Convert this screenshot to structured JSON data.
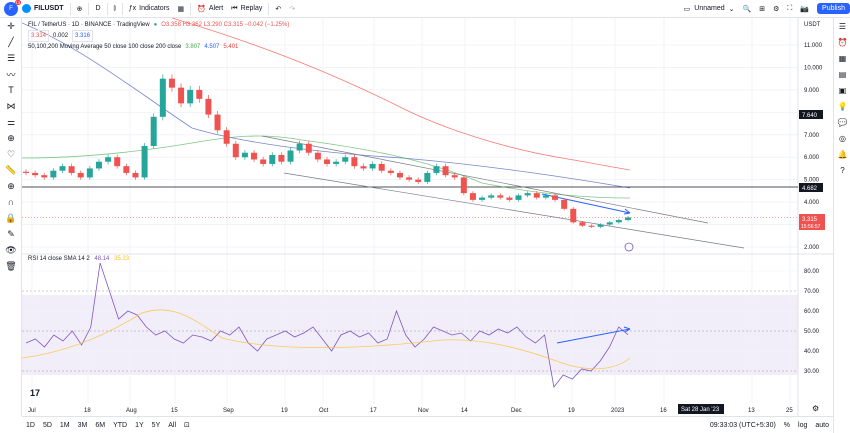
{
  "topbar": {
    "avatar_text": "F",
    "notif_count": "13",
    "symbol": "FILUSDT",
    "interval": "D",
    "indicators_label": "Indicators",
    "alert_label": "Alert",
    "replay_label": "Replay",
    "layout_name": "Unnamed",
    "publish_label": "Publish"
  },
  "legend": {
    "title": "FIL / TetherUS · 1D · BINANCE · TradingView",
    "ohlc": "O3.358 H3.362 L3.290 C3.315 −0.042 (−1.25%)",
    "bid": "3.314",
    "spread": "0.002",
    "ask": "3.316",
    "ma_label": "50,100,200 Moving Average 50 close 100 close 200 close",
    "ma50": "3.807",
    "ma100": "4.507",
    "ma200": "5.401",
    "rsi_label": "RSI 14 close SMA 14 2",
    "rsi_val": "48.14",
    "rsi_sma": "35.33"
  },
  "price_axis": {
    "currency": "USDT",
    "ticks": [
      "11.000",
      "10.000",
      "9.000",
      "8.000",
      "7.000",
      "6.000",
      "5.000",
      "4.000",
      "3.000",
      "2.000"
    ],
    "marker_high": "7.640",
    "marker_line": "4.682",
    "last_price": "3.315",
    "countdown": "15:56:57"
  },
  "rsi_axis": {
    "ticks": [
      "80.00",
      "70.00",
      "60.00",
      "50.00",
      "40.00",
      "30.00"
    ]
  },
  "time_axis": {
    "ticks": [
      "Jul",
      "18",
      "Aug",
      "15",
      "Sep",
      "19",
      "Oct",
      "17",
      "Nov",
      "14",
      "Dec",
      "19",
      "2023",
      "16",
      "13",
      "25"
    ],
    "crosshair_date": "Sat 28 Jan '23"
  },
  "bottombar": {
    "ranges": [
      "1D",
      "5D",
      "1M",
      "3M",
      "6M",
      "YTD",
      "1Y",
      "5Y",
      "All"
    ],
    "time": "09:33:03 (UTC+5:30)",
    "pct": "%",
    "log": "log",
    "auto": "auto"
  },
  "colors": {
    "up": "#26a69a",
    "down": "#ef5350",
    "ma50": "#4caf50",
    "ma100": "#2962ff",
    "ma200": "#f44336",
    "rsi": "#7e57c2",
    "rsi_sma": "#fbc02d",
    "accent": "#2962ff"
  },
  "chart_data": {
    "type": "candlestick",
    "symbol": "FIL / TetherUS",
    "interval": "1D",
    "closes": [
      5.3,
      5.2,
      5.1,
      5.4,
      5.6,
      5.3,
      5.1,
      5.5,
      5.8,
      6.0,
      5.6,
      5.3,
      5.1,
      6.5,
      7.8,
      9.5,
      9.1,
      8.4,
      9.0,
      8.6,
      7.9,
      7.2,
      6.6,
      6.0,
      6.2,
      5.9,
      5.7,
      6.1,
      5.8,
      6.3,
      6.6,
      6.2,
      5.9,
      5.7,
      5.8,
      6.0,
      5.6,
      5.5,
      5.7,
      5.4,
      5.3,
      5.1,
      5.0,
      4.9,
      5.3,
      5.6,
      5.2,
      5.1,
      4.4,
      4.1,
      4.2,
      4.3,
      4.2,
      4.1,
      4.3,
      4.4,
      4.2,
      4.3,
      4.1,
      3.7,
      3.1,
      2.95,
      2.9,
      3.0,
      3.1,
      3.2,
      3.315
    ],
    "rsi": [
      44,
      46,
      42,
      48,
      45,
      50,
      43,
      52,
      84,
      70,
      56,
      60,
      58,
      52,
      48,
      50,
      46,
      44,
      48,
      47,
      45,
      50,
      48,
      52,
      44,
      40,
      46,
      48,
      50,
      47,
      49,
      52,
      46,
      40,
      48,
      50,
      47,
      49,
      44,
      46,
      60,
      48,
      42,
      46,
      52,
      50,
      48,
      49,
      45,
      50,
      48,
      51,
      49,
      52,
      47,
      44,
      48,
      22,
      28,
      26,
      31,
      30,
      35,
      42,
      52,
      48.14
    ]
  }
}
